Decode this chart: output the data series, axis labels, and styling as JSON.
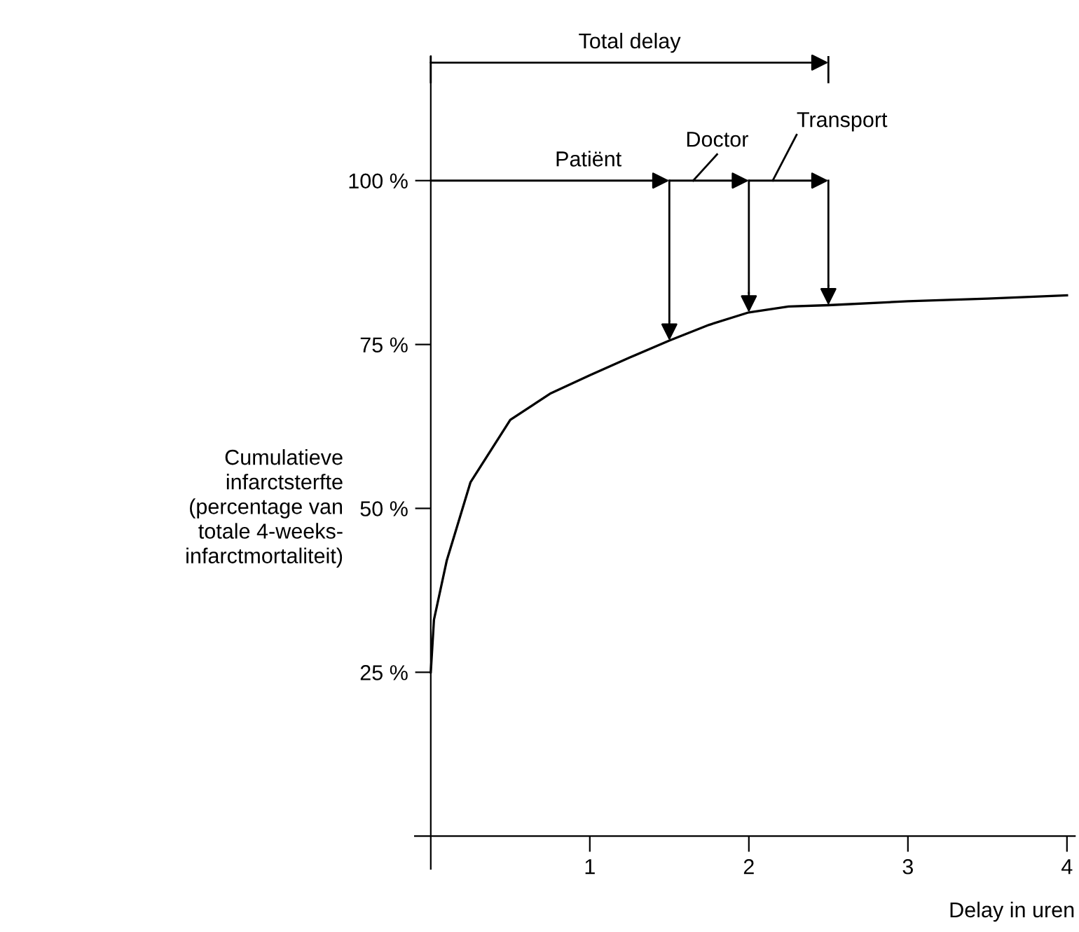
{
  "chart_data": {
    "type": "line",
    "xlabel": "Delay in uren",
    "ylabel": "Cumulatieve\ninfarctsterfte\n(percentage van\ntotale 4-weeks-\ninfarctmortaliteit)",
    "x": [
      0,
      0.02,
      0.1,
      0.25,
      0.5,
      0.75,
      1,
      1.25,
      1.5,
      1.75,
      2,
      2.25,
      2.5,
      3,
      3.5,
      4
    ],
    "series": [
      {
        "color": "#000000",
        "values": [
          25,
          33,
          42,
          54,
          63.5,
          67.5,
          70.3,
          73,
          75.6,
          78,
          79.9,
          80.8,
          81,
          81.6,
          82,
          82.5
        ]
      }
    ],
    "xlim": [
      -0.1,
      4.05
    ],
    "ylim": [
      -5,
      119
    ],
    "xticks": [
      1,
      2,
      3,
      4
    ],
    "yticks": [
      {
        "value": 25,
        "label": "25 %"
      },
      {
        "value": 50,
        "label": "50 %"
      },
      {
        "value": 75,
        "label": "75 %"
      },
      {
        "value": 100,
        "label": "100 %"
      }
    ],
    "grid": false,
    "legend": false,
    "marker": "none",
    "line_style": "solid",
    "annotations": [
      "Total delay"
    ],
    "ref_lines": [
      {
        "axis": "x",
        "value": 1.5,
        "label": "Patiënt"
      },
      {
        "axis": "x",
        "value": 2,
        "label": "Doctor"
      },
      {
        "axis": "x",
        "value": 2.5,
        "label": "Transport"
      }
    ]
  }
}
